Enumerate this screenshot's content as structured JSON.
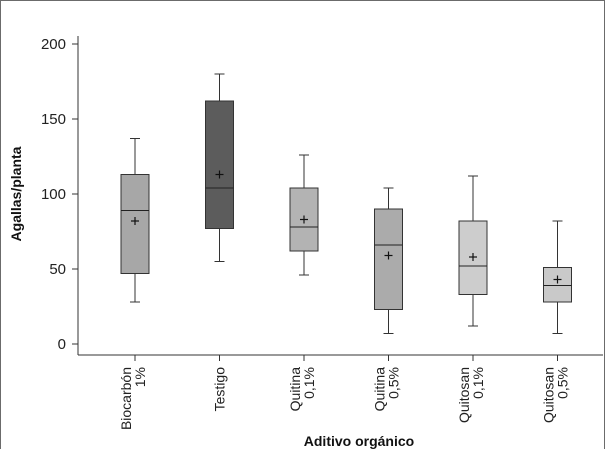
{
  "chart_data": {
    "type": "box",
    "title": "",
    "xlabel": "Aditivo orgánico",
    "ylabel": "Agallas/planta",
    "ylim": [
      0,
      200
    ],
    "yticks": [
      0,
      50,
      100,
      150,
      200
    ],
    "grid": false,
    "legend": "none",
    "categories": [
      {
        "line1": "Biocarbón",
        "line2": "1%"
      },
      {
        "line1": "Testigo",
        "line2": ""
      },
      {
        "line1": "Quitina",
        "line2": "0,1%"
      },
      {
        "line1": "Quitina",
        "line2": "0,5%"
      },
      {
        "line1": "Quitosan",
        "line2": "0,1%"
      },
      {
        "line1": "Quitosan",
        "line2": "0,5%"
      }
    ],
    "boxes": [
      {
        "min": 28,
        "q1": 47,
        "median": 89,
        "q3": 113,
        "max": 137,
        "mean": 82,
        "color": "#a7a7a7"
      },
      {
        "min": 55,
        "q1": 77,
        "median": 104,
        "q3": 162,
        "max": 180,
        "mean": 113,
        "color": "#5c5c5c"
      },
      {
        "min": 46,
        "q1": 62,
        "median": 78,
        "q3": 104,
        "max": 126,
        "mean": 83,
        "color": "#b3b3b3"
      },
      {
        "min": 7,
        "q1": 23,
        "median": 66,
        "q3": 90,
        "max": 104,
        "mean": 59,
        "color": "#ababab"
      },
      {
        "min": 12,
        "q1": 33,
        "median": 52,
        "q3": 82,
        "max": 112,
        "mean": 58,
        "color": "#cdcdcd"
      },
      {
        "min": 7,
        "q1": 28,
        "median": 39,
        "q3": 51,
        "max": 82,
        "mean": 43,
        "color": "#c9c9c9"
      }
    ]
  }
}
